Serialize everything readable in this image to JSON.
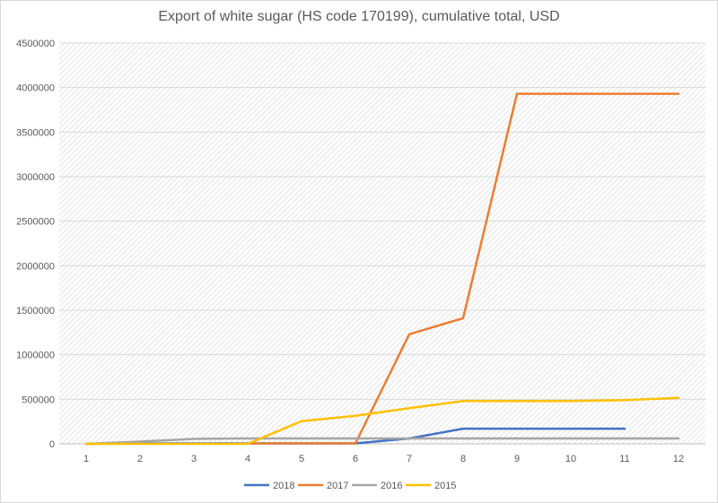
{
  "chart_data": {
    "type": "line",
    "title": "Export of white sugar (HS code 170199), cumulative total, USD",
    "xlabel": "",
    "ylabel": "",
    "categories": [
      "1",
      "2",
      "3",
      "4",
      "5",
      "6",
      "7",
      "8",
      "9",
      "10",
      "11",
      "12"
    ],
    "ylim": [
      0,
      4500000
    ],
    "yticks": [
      "0",
      "500000",
      "1000000",
      "1500000",
      "2000000",
      "2500000",
      "3000000",
      "3500000",
      "4000000",
      "4500000"
    ],
    "grid": true,
    "legend_position": "bottom",
    "series": [
      {
        "name": "2018",
        "color": "#4472c4",
        "values": [
          0,
          5000,
          5000,
          5000,
          5000,
          5000,
          60000,
          170000,
          170000,
          170000,
          170000,
          null
        ]
      },
      {
        "name": "2017",
        "color": "#ed7d31",
        "values": [
          null,
          null,
          null,
          5000,
          5000,
          5000,
          1230000,
          1410000,
          3930000,
          3930000,
          3930000,
          3930000
        ]
      },
      {
        "name": "2016",
        "color": "#a5a5a5",
        "values": [
          0,
          25000,
          55000,
          60000,
          60000,
          60000,
          60000,
          60000,
          60000,
          60000,
          60000,
          60000
        ]
      },
      {
        "name": "2015",
        "color": "#ffc000",
        "values": [
          0,
          0,
          0,
          0,
          255000,
          315000,
          400000,
          480000,
          480000,
          480000,
          490000,
          515000
        ]
      }
    ]
  }
}
